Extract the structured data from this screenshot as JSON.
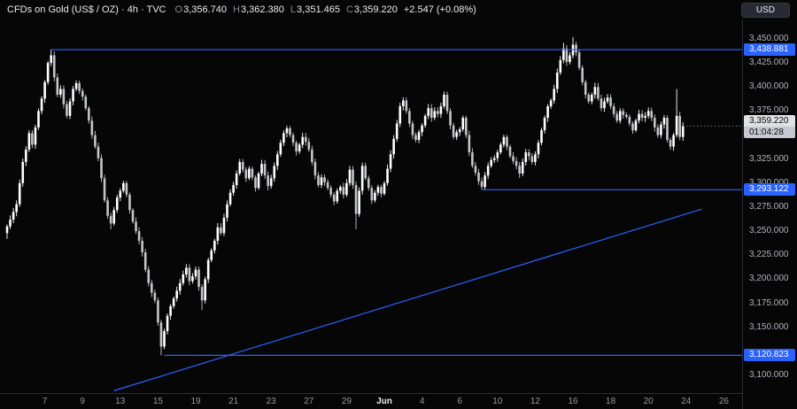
{
  "toolbar": {
    "symbol_title": "CFDs on Gold (US$ / OZ) · 4h · TVC",
    "ohlc": {
      "open_label": "O",
      "open": "3,356.740",
      "high_label": "H",
      "high": "3,362.380",
      "low_label": "L",
      "low": "3,351.465",
      "close_label": "C",
      "close": "3,359.220",
      "change": "+2.547 (+0.08%)"
    },
    "currency_button": "USD"
  },
  "price_axis": {
    "tick_values": [
      3450,
      3425,
      3400,
      3375,
      3325,
      3300,
      3275,
      3250,
      3225,
      3200,
      3175,
      3150,
      3100
    ],
    "tick_labels": [
      "3,450.000",
      "3,425.000",
      "3,400.000",
      "3,375.000",
      "3,325.000",
      "3,300.000",
      "3,275.000",
      "3,250.000",
      "3,225.000",
      "3,200.000",
      "3,175.000",
      "3,150.000",
      "3,100.000"
    ],
    "level_labels": [
      {
        "text": "3,438.881",
        "price": 3438.881
      },
      {
        "text": "3,293.122",
        "price": 3293.122
      },
      {
        "text": "3,120.823",
        "price": 3120.823
      }
    ],
    "last_price_label": {
      "text": "3,359.220",
      "countdown": "01:04:28",
      "price": 3359.22
    }
  },
  "time_axis": {
    "labels": [
      {
        "text": "7",
        "day": 2,
        "bold": false
      },
      {
        "text": "9",
        "day": 4,
        "bold": false
      },
      {
        "text": "13",
        "day": 6,
        "bold": false
      },
      {
        "text": "15",
        "day": 8,
        "bold": false
      },
      {
        "text": "19",
        "day": 10,
        "bold": false
      },
      {
        "text": "21",
        "day": 12,
        "bold": false
      },
      {
        "text": "23",
        "day": 14,
        "bold": false
      },
      {
        "text": "27",
        "day": 16,
        "bold": false
      },
      {
        "text": "29",
        "day": 18,
        "bold": false
      },
      {
        "text": "Jun",
        "day": 20,
        "bold": true
      },
      {
        "text": "4",
        "day": 22,
        "bold": false
      },
      {
        "text": "6",
        "day": 24,
        "bold": false
      },
      {
        "text": "10",
        "day": 26,
        "bold": false
      },
      {
        "text": "12",
        "day": 28,
        "bold": false
      },
      {
        "text": "16",
        "day": 30,
        "bold": false
      },
      {
        "text": "18",
        "day": 32,
        "bold": false
      },
      {
        "text": "20",
        "day": 34,
        "bold": false
      },
      {
        "text": "24",
        "day": 36,
        "bold": false
      },
      {
        "text": "26",
        "day": 38,
        "bold": false
      }
    ]
  },
  "chart_data": {
    "type": "candlestick",
    "title": "CFDs on Gold (US$ / OZ)",
    "timeframe": "4h",
    "exchange": "TVC",
    "ylim": [
      3100,
      3450
    ],
    "y_tick": 25,
    "candles_per_day": 6,
    "first_open": 3248,
    "closes": [
      3255,
      3262,
      3270,
      3278,
      3300,
      3322,
      3335,
      3352,
      3340,
      3358,
      3375,
      3388,
      3405,
      3425,
      3433,
      3410,
      3392,
      3398,
      3382,
      3370,
      3385,
      3398,
      3404,
      3396,
      3390,
      3378,
      3365,
      3350,
      3338,
      3326,
      3305,
      3282,
      3266,
      3258,
      3272,
      3285,
      3292,
      3300,
      3288,
      3272,
      3260,
      3250,
      3240,
      3228,
      3210,
      3196,
      3186,
      3178,
      3155,
      3130,
      3146,
      3162,
      3172,
      3180,
      3188,
      3196,
      3205,
      3212,
      3198,
      3203,
      3210,
      3192,
      3178,
      3200,
      3220,
      3230,
      3240,
      3254,
      3248,
      3264,
      3278,
      3290,
      3298,
      3310,
      3322,
      3314,
      3305,
      3315,
      3306,
      3295,
      3310,
      3320,
      3308,
      3297,
      3305,
      3318,
      3330,
      3342,
      3352,
      3357,
      3350,
      3342,
      3333,
      3340,
      3348,
      3343,
      3335,
      3322,
      3308,
      3298,
      3306,
      3301,
      3295,
      3288,
      3281,
      3292,
      3296,
      3288,
      3300,
      3314,
      3298,
      3268,
      3292,
      3318,
      3305,
      3295,
      3282,
      3290,
      3296,
      3289,
      3300,
      3315,
      3330,
      3346,
      3362,
      3380,
      3386,
      3375,
      3362,
      3350,
      3345,
      3353,
      3360,
      3370,
      3378,
      3368,
      3375,
      3372,
      3380,
      3392,
      3375,
      3360,
      3348,
      3353,
      3356,
      3368,
      3350,
      3332,
      3318,
      3311,
      3302,
      3296,
      3308,
      3318,
      3324,
      3326,
      3332,
      3340,
      3348,
      3338,
      3328,
      3323,
      3318,
      3310,
      3322,
      3332,
      3328,
      3322,
      3330,
      3342,
      3355,
      3368,
      3380,
      3386,
      3398,
      3415,
      3428,
      3440,
      3426,
      3433,
      3444,
      3436,
      3420,
      3405,
      3392,
      3385,
      3392,
      3400,
      3388,
      3378,
      3385,
      3389,
      3380,
      3372,
      3365,
      3375,
      3371,
      3369,
      3362,
      3355,
      3365,
      3372,
      3368,
      3370,
      3375,
      3368,
      3358,
      3350,
      3361,
      3368,
      3345,
      3338,
      3350,
      3370,
      3348,
      3359.22
    ],
    "wick_overrides": {
      "0": {
        "low": 3242
      },
      "14": {
        "high": 3438.881
      },
      "33": {
        "low": 3252
      },
      "49": {
        "low": 3120.823
      },
      "62": {
        "low": 3168
      },
      "111": {
        "low": 3252
      },
      "151": {
        "low": 3293.122
      },
      "177": {
        "high": 3446
      },
      "180": {
        "high": 3451.9
      },
      "213": {
        "high": 3398
      }
    },
    "key_levels": [
      3438.881,
      3293.122,
      3120.823
    ],
    "last_price": 3359.22,
    "drawings": {
      "horizontal_rays": [
        {
          "price": 3438.881,
          "from_candle": 14
        },
        {
          "price": 3293.122,
          "from_candle": 151
        },
        {
          "price": 3120.823,
          "from_candle": 50
        }
      ],
      "trendline": {
        "from_candle": 34,
        "from_price": 3084,
        "to_candle": 221,
        "to_price": 3273
      }
    }
  },
  "colors": {
    "background": "#060606",
    "candle_up": "#ffffff",
    "candle_down": "#c2c5cc",
    "drawing_blue": "#2962ff",
    "axis_text": "#aeb2ba",
    "last_label_bg": "#dfe1e6"
  }
}
